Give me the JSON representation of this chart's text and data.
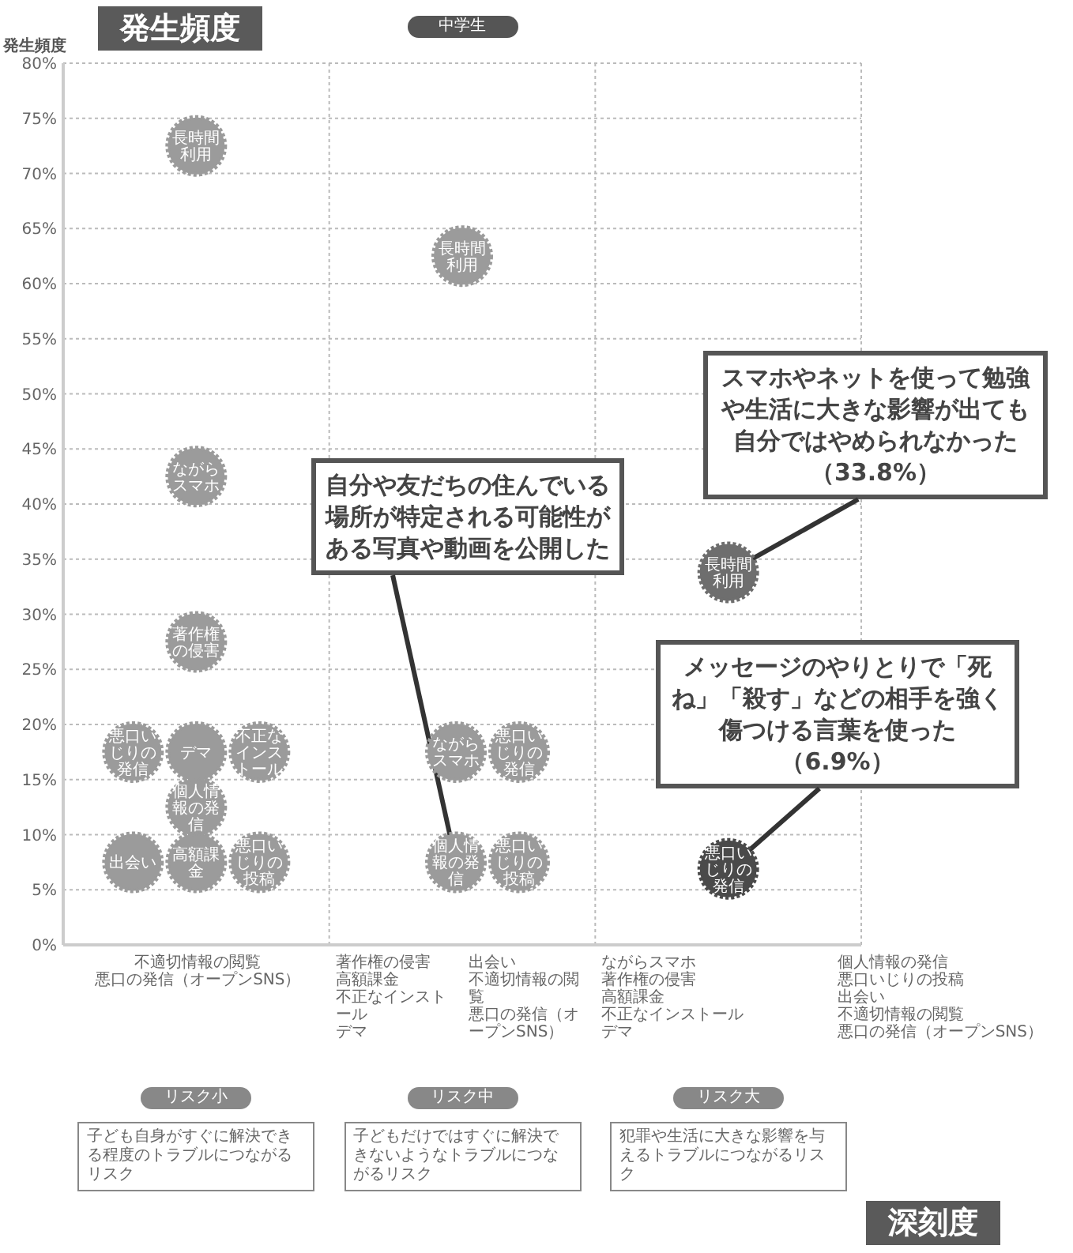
{
  "chart_data": {
    "type": "scatter",
    "subtitle": "中学生",
    "ylabel": "発生頻度",
    "xlabel": "深刻度",
    "categories": [
      "リスク小",
      "リスク中",
      "リスク大"
    ],
    "series": [
      {
        "x": [
          "リスク小",
          "リスク小",
          "リスク小",
          "リスク小",
          "リスク小",
          "リスク小",
          "リスク小",
          "リスク小",
          "リスク小",
          "リスク小",
          "リスク中",
          "リスク中",
          "リスク中",
          "リスク中",
          "リスク中",
          "リスク大",
          "リスク大"
        ],
        "values": [
          72.5,
          42.5,
          27.5,
          17.5,
          17.5,
          17.5,
          12.5,
          7.5,
          7.5,
          7.5,
          62.5,
          17.5,
          17.5,
          7.5,
          7.5,
          33.8,
          6.9
        ],
        "value_labels": [
          "長時間利用",
          "ながらスマホ",
          "著作権の侵害",
          "悪口いじりの発信",
          "デマ",
          "不正なインストール",
          "個人情報の発信",
          "出会い",
          "高額課金",
          "悪口いじりの投稿",
          "長時間利用",
          "ながらスマホ",
          "悪口いじりの発信",
          "個人情報の発信",
          "悪口いじりの投稿",
          "長時間利用",
          "悪口いじりの発信"
        ],
        "colors": [
          "#9b9b9b",
          "#9b9b9b",
          "#9b9b9b",
          "#9b9b9b",
          "#9b9b9b",
          "#9b9b9b",
          "#9b9b9b",
          "#9b9b9b",
          "#9b9b9b",
          "#9b9b9b",
          "#9b9b9b",
          "#9b9b9b",
          "#9b9b9b",
          "#9b9b9b",
          "#9b9b9b",
          "#6e6e6e",
          "#4a4a4a"
        ]
      }
    ],
    "marker": "circle",
    "grid": true,
    "ylim": [
      0,
      80
    ],
    "yticks": [
      {
        "value": 0,
        "label": "0%"
      },
      {
        "value": 5,
        "label": "5%"
      },
      {
        "value": 10,
        "label": "10%"
      },
      {
        "value": 15,
        "label": "15%"
      },
      {
        "value": 20,
        "label": "20%"
      },
      {
        "value": 25,
        "label": "25%"
      },
      {
        "value": 30,
        "label": "30%"
      },
      {
        "value": 35,
        "label": "35%"
      },
      {
        "value": 40,
        "label": "40%"
      },
      {
        "value": 45,
        "label": "45%"
      },
      {
        "value": 50,
        "label": "50%"
      },
      {
        "value": 55,
        "label": "55%"
      },
      {
        "value": 60,
        "label": "60%"
      },
      {
        "value": 65,
        "label": "65%"
      },
      {
        "value": 70,
        "label": "70%"
      },
      {
        "value": 75,
        "label": "75%"
      },
      {
        "value": 80,
        "label": "80%"
      }
    ],
    "annotations": [
      {
        "text": "自分や友だちの住んでいる場所が特定される可能性がある写真や動画を公開した",
        "x": "リスク中",
        "y": 7.5
      },
      {
        "text": "スマホやネットを使って勉強や生活に大きな影響が出ても自分ではやめられなかった（33.8%）",
        "x": "リスク大",
        "y": 33.8
      },
      {
        "text": "メッセージのやりとりで「死ね」「殺す」などの相手を強く傷つける言葉を使った（6.9%）",
        "x": "リスク大",
        "y": 6.9
      },
      "不適切情報の閲覧",
      "悪口の発信（オープンSNS）",
      "著作権の侵害",
      "高額課金",
      "不正なインストール",
      "デマ",
      "出会い",
      "不適切情報の閲覧",
      "悪口の発信（オープンSNS）",
      "ながらスマホ",
      "著作権の侵害",
      "高額課金",
      "不正なインストール",
      "デマ",
      "個人情報の発信",
      "悪口いじりの投稿",
      "出会い",
      "不適切情報の閲覧",
      "悪口の発信（オープンSNS）",
      "子ども自身がすぐに解決できる程度のトラブルにつながるリスク",
      "子どもだけではすぐに解決できないようなトラブルにつながるリスク",
      "犯罪や生活に大きな影響を与えるトラブルにつながるリスク"
    ]
  }
}
